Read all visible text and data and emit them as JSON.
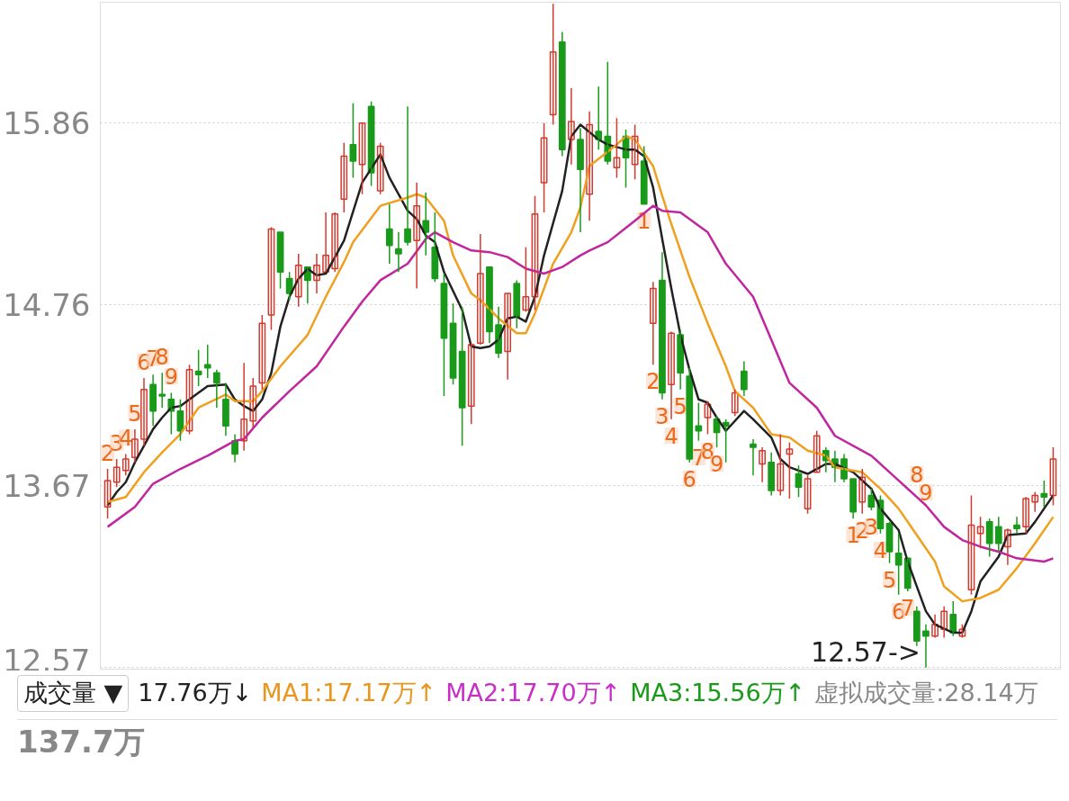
{
  "chart_data": {
    "type": "candlestick",
    "categories": [
      null,
      null,
      null,
      null,
      null,
      null,
      null,
      null,
      null,
      null,
      null,
      null,
      null,
      null,
      null,
      null,
      null,
      null,
      null,
      null,
      null,
      null,
      null,
      null,
      null,
      null,
      null,
      null,
      null,
      null,
      null,
      null,
      null,
      null,
      null,
      null,
      null,
      null,
      null,
      null,
      null,
      null,
      null,
      null,
      null,
      null,
      null,
      null,
      null,
      null,
      null,
      null,
      null,
      null,
      null,
      null,
      null,
      null,
      null,
      null,
      null,
      null,
      null,
      null,
      null,
      null,
      null,
      null,
      null,
      null,
      null,
      null,
      null,
      null,
      null,
      null,
      null,
      null,
      null,
      null,
      null,
      null,
      null,
      null,
      null,
      null,
      null,
      null,
      null,
      null,
      null,
      null,
      null,
      null,
      null,
      null,
      null,
      null,
      null,
      null,
      null,
      null,
      null,
      null,
      null
    ],
    "ohlc": [
      [
        13.54,
        13.77,
        13.47,
        13.7
      ],
      [
        13.69,
        13.83,
        13.66,
        13.78
      ],
      [
        13.76,
        13.86,
        13.73,
        13.83
      ],
      [
        13.84,
        14.01,
        13.81,
        13.95
      ],
      [
        13.95,
        14.32,
        13.91,
        14.25
      ],
      [
        14.28,
        14.34,
        14.03,
        14.12
      ],
      [
        14.22,
        14.35,
        14.14,
        14.21
      ],
      [
        14.19,
        14.23,
        13.98,
        14.12
      ],
      [
        14.12,
        14.19,
        13.94,
        14.0
      ],
      [
        14.0,
        14.4,
        13.98,
        14.37
      ],
      [
        14.36,
        14.49,
        14.27,
        14.34
      ],
      [
        14.4,
        14.52,
        14.32,
        14.38
      ],
      [
        14.35,
        14.37,
        14.14,
        14.29
      ],
      [
        14.19,
        14.29,
        13.97,
        14.03
      ],
      [
        13.94,
        13.98,
        13.81,
        13.86
      ],
      [
        13.94,
        14.41,
        13.88,
        14.07
      ],
      [
        14.06,
        14.32,
        14.02,
        14.27
      ],
      [
        14.29,
        14.7,
        14.25,
        14.65
      ],
      [
        14.7,
        15.23,
        14.61,
        15.22
      ],
      [
        15.2,
        15.2,
        14.86,
        14.96
      ],
      [
        14.92,
        14.96,
        14.79,
        14.83
      ],
      [
        14.81,
        15.07,
        14.75,
        15.0
      ],
      [
        14.99,
        14.99,
        14.77,
        14.91
      ],
      [
        14.91,
        15.07,
        14.83,
        15.0
      ],
      [
        14.96,
        15.32,
        14.96,
        15.06
      ],
      [
        14.98,
        15.32,
        14.96,
        15.31
      ],
      [
        15.4,
        15.74,
        15.32,
        15.66
      ],
      [
        15.73,
        15.98,
        15.53,
        15.63
      ],
      [
        15.61,
        15.86,
        15.43,
        15.86
      ],
      [
        15.96,
        15.99,
        15.48,
        15.56
      ],
      [
        15.45,
        15.74,
        15.43,
        15.72
      ],
      [
        15.22,
        15.37,
        15.01,
        15.12
      ],
      [
        15.1,
        15.2,
        14.96,
        15.07
      ],
      [
        15.22,
        15.96,
        15.12,
        15.14
      ],
      [
        15.15,
        15.5,
        14.86,
        15.36
      ],
      [
        15.27,
        15.44,
        15.06,
        15.2
      ],
      [
        15.11,
        15.32,
        14.9,
        14.92
      ],
      [
        14.89,
        14.95,
        14.21,
        14.56
      ],
      [
        14.65,
        14.77,
        14.28,
        14.32
      ],
      [
        14.48,
        14.75,
        13.91,
        14.14
      ],
      [
        14.15,
        14.53,
        14.04,
        14.52
      ],
      [
        14.53,
        15.19,
        14.52,
        14.95
      ],
      [
        14.99,
        14.99,
        14.53,
        14.6
      ],
      [
        14.64,
        14.75,
        14.44,
        14.47
      ],
      [
        14.48,
        14.83,
        14.31,
        14.83
      ],
      [
        14.89,
        14.91,
        14.62,
        14.69
      ],
      [
        14.73,
        15.11,
        14.72,
        14.81
      ],
      [
        14.81,
        15.42,
        14.73,
        15.31
      ],
      [
        15.5,
        15.86,
        15.32,
        15.77
      ],
      [
        15.91,
        16.58,
        15.85,
        16.29
      ],
      [
        16.35,
        16.41,
        15.66,
        15.7
      ],
      [
        15.76,
        16.07,
        15.61,
        15.87
      ],
      [
        15.76,
        15.83,
        15.2,
        15.58
      ],
      [
        15.43,
        15.93,
        15.27,
        15.85
      ],
      [
        15.81,
        16.08,
        15.7,
        15.76
      ],
      [
        15.78,
        16.23,
        15.61,
        15.63
      ],
      [
        15.59,
        15.89,
        15.53,
        15.65
      ],
      [
        15.78,
        15.82,
        15.47,
        15.65
      ],
      [
        15.61,
        15.85,
        15.52,
        15.78
      ],
      [
        15.63,
        15.72,
        15.37,
        15.37
      ],
      [
        14.65,
        14.9,
        14.4,
        14.86
      ],
      [
        14.91,
        15.08,
        14.19,
        14.23
      ],
      [
        14.28,
        14.6,
        14.07,
        14.59
      ],
      [
        14.58,
        14.61,
        14.25,
        14.35
      ],
      [
        14.33,
        14.38,
        13.81,
        13.83
      ],
      [
        14.03,
        14.17,
        13.94,
        14.0
      ],
      [
        14.08,
        14.18,
        13.98,
        14.16
      ],
      [
        14.07,
        14.09,
        13.9,
        13.99
      ],
      [
        14.05,
        14.07,
        13.81,
        14.03
      ],
      [
        14.11,
        14.25,
        14.09,
        14.23
      ],
      [
        14.36,
        14.42,
        14.21,
        14.25
      ],
      [
        13.92,
        13.95,
        13.73,
        13.9
      ],
      [
        13.8,
        13.9,
        13.69,
        13.88
      ],
      [
        13.81,
        13.87,
        13.61,
        13.64
      ],
      [
        13.64,
        13.98,
        13.61,
        13.8
      ],
      [
        13.86,
        13.93,
        13.59,
        13.89
      ],
      [
        13.74,
        13.79,
        13.6,
        13.66
      ],
      [
        13.53,
        13.73,
        13.5,
        13.71
      ],
      [
        13.75,
        14.0,
        13.75,
        13.97
      ],
      [
        13.88,
        13.9,
        13.75,
        13.82
      ],
      [
        13.83,
        13.88,
        13.69,
        13.78
      ],
      [
        13.83,
        13.86,
        13.69,
        13.71
      ],
      [
        13.71,
        13.71,
        13.47,
        13.51
      ],
      [
        13.57,
        13.77,
        13.5,
        13.72
      ],
      [
        13.61,
        13.65,
        13.52,
        13.54
      ],
      [
        13.58,
        13.61,
        13.38,
        13.41
      ],
      [
        13.44,
        13.45,
        13.2,
        13.27
      ],
      [
        13.26,
        13.38,
        13.01,
        13.19
      ],
      [
        13.23,
        13.23,
        13.03,
        13.05
      ],
      [
        12.91,
        12.94,
        12.7,
        12.73
      ],
      [
        12.79,
        12.83,
        12.57,
        12.76
      ],
      [
        12.76,
        12.89,
        12.75,
        12.83
      ],
      [
        12.8,
        12.94,
        12.75,
        12.91
      ],
      [
        12.89,
        12.97,
        12.76,
        12.78
      ],
      [
        12.76,
        12.83,
        12.75,
        12.8
      ],
      [
        13.04,
        13.61,
        13.01,
        13.43
      ],
      [
        13.38,
        13.48,
        13.29,
        13.42
      ],
      [
        13.45,
        13.47,
        13.24,
        13.32
      ],
      [
        13.42,
        13.48,
        13.27,
        13.32
      ],
      [
        13.3,
        13.41,
        13.19,
        13.4
      ],
      [
        13.43,
        13.48,
        13.38,
        13.41
      ],
      [
        13.42,
        13.6,
        13.38,
        13.59
      ],
      [
        13.57,
        13.63,
        13.51,
        13.61
      ],
      [
        13.62,
        13.7,
        13.54,
        13.6
      ],
      [
        13.61,
        13.9,
        13.55,
        13.83
      ]
    ],
    "value_labels": [
      "2",
      "3",
      "4",
      "5",
      "6",
      "7",
      "8",
      "9",
      null,
      null,
      null,
      null,
      null,
      null,
      null,
      null,
      null,
      null,
      null,
      null,
      null,
      null,
      null,
      null,
      null,
      null,
      null,
      null,
      null,
      null,
      null,
      null,
      null,
      null,
      null,
      null,
      null,
      null,
      null,
      null,
      null,
      null,
      null,
      null,
      null,
      null,
      null,
      null,
      null,
      null,
      null,
      null,
      null,
      null,
      null,
      null,
      null,
      null,
      null,
      "1",
      "2",
      "3",
      "4",
      "5",
      "6",
      "7",
      "8",
      "9",
      null,
      null,
      null,
      null,
      null,
      null,
      null,
      null,
      null,
      null,
      null,
      null,
      null,
      null,
      "1",
      "2",
      "3",
      "4",
      "5",
      "6",
      "7",
      "8",
      "9",
      null,
      null,
      null,
      null,
      null,
      null,
      null,
      null,
      null,
      null,
      null,
      null,
      null,
      null
    ],
    "series": [
      {
        "type": "line",
        "color": "#222222",
        "values": [
          13.55,
          13.63,
          13.69,
          13.81,
          13.91,
          14.01,
          14.08,
          14.14,
          14.15,
          14.19,
          null,
          14.27,
          null,
          14.28,
          14.19,
          14.15,
          14.12,
          14.19,
          14.35,
          14.63,
          14.81,
          14.92,
          14.98,
          14.94,
          14.95,
          null,
          15.15,
          null,
          15.5,
          null,
          15.67,
          15.53,
          null,
          15.33,
          15.28,
          15.18,
          15.14,
          14.96,
          null,
          14.73,
          14.51,
          14.5,
          14.51,
          14.55,
          14.68,
          14.69,
          14.66,
          14.81,
          15.06,
          null,
          15.45,
          15.78,
          15.85,
          null,
          15.76,
          15.73,
          null,
          15.7,
          15.7,
          15.66,
          15.47,
          15.16,
          14.86,
          14.58,
          14.37,
          14.19,
          14.17,
          14.08,
          14.0,
          null,
          14.12,
          14.07,
          null,
          13.96,
          13.83,
          13.78,
          null,
          13.74,
          null,
          13.8,
          13.8,
          null,
          13.75,
          null,
          13.65,
          13.53,
          null,
          13.4,
          13.21,
          13.06,
          12.91,
          12.83,
          null,
          12.78,
          12.78,
          12.91,
          13.09,
          null,
          13.24,
          13.37,
          null,
          13.38,
          13.45,
          13.53,
          13.61
        ]
      },
      {
        "type": "line",
        "color": "#f0a020",
        "values": [
          13.57,
          null,
          13.6,
          null,
          13.75,
          null,
          13.87,
          null,
          13.98,
          null,
          14.14,
          null,
          null,
          14.22,
          14.18,
          null,
          14.18,
          14.24,
          null,
          14.39,
          null,
          null,
          14.58,
          null,
          14.81,
          null,
          15.02,
          15.14,
          null,
          null,
          15.36,
          null,
          null,
          15.41,
          15.43,
          15.41,
          null,
          15.27,
          15.06,
          null,
          14.83,
          14.79,
          null,
          14.68,
          null,
          14.59,
          14.59,
          14.71,
          null,
          15.01,
          null,
          15.2,
          15.35,
          15.6,
          null,
          null,
          15.73,
          15.78,
          15.76,
          null,
          15.6,
          15.42,
          15.25,
          null,
          14.93,
          null,
          14.65,
          null,
          14.39,
          14.24,
          null,
          14.14,
          null,
          13.98,
          null,
          13.96,
          null,
          13.88,
          null,
          13.85,
          13.78,
          null,
          null,
          13.75,
          null,
          13.65,
          null,
          13.53,
          null,
          13.37,
          null,
          13.21,
          13.06,
          null,
          12.97,
          null,
          12.99,
          null,
          13.04,
          null,
          13.17,
          null,
          13.32,
          null,
          13.48
        ]
      },
      {
        "type": "line",
        "color": "#c0269e",
        "values": [
          13.42,
          null,
          null,
          13.54,
          null,
          13.68,
          null,
          null,
          13.77,
          null,
          null,
          13.85,
          null,
          null,
          13.94,
          13.95,
          null,
          14.08,
          null,
          null,
          14.24,
          null,
          null,
          14.39,
          null,
          null,
          14.63,
          null,
          14.78,
          null,
          14.91,
          null,
          null,
          15.01,
          null,
          15.16,
          15.2,
          null,
          15.14,
          null,
          15.09,
          null,
          15.08,
          null,
          15.05,
          null,
          14.98,
          null,
          14.95,
          null,
          14.99,
          null,
          15.06,
          15.09,
          null,
          15.14,
          null,
          null,
          15.27,
          null,
          15.36,
          15.33,
          null,
          15.32,
          null,
          null,
          15.2,
          null,
          15.01,
          null,
          null,
          14.81,
          null,
          14.55,
          null,
          14.29,
          null,
          null,
          14.14,
          null,
          13.97,
          null,
          null,
          null,
          13.85,
          null,
          null,
          13.7,
          null,
          null,
          13.55,
          null,
          13.42,
          null,
          13.34,
          null,
          13.3,
          null,
          13.27,
          null,
          13.23,
          null,
          null,
          13.21,
          13.23
        ]
      }
    ],
    "ylim": [
      12.56,
      16.59
    ],
    "yticks": [
      15.86,
      14.76,
      13.67,
      12.57
    ],
    "grid": "y",
    "tick_labels": "y",
    "annotations": [
      "12.57->",
      "成交量 ▼",
      "17.76万↓",
      "MA1:17.17万↑",
      "MA2:17.70万↑",
      "MA3:15.56万↑",
      "虚拟成交量:28.14万",
      "137.7万"
    ]
  }
}
